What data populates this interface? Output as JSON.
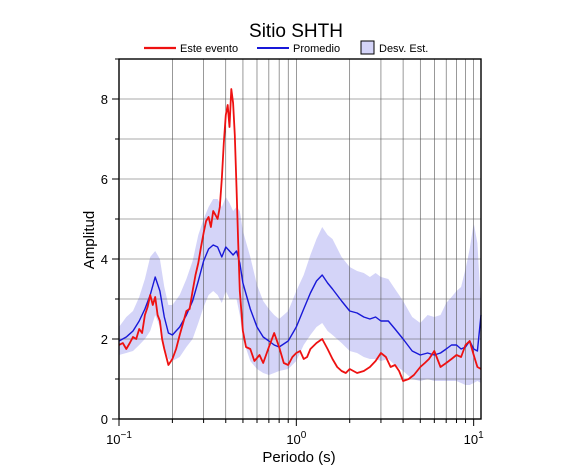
{
  "chart_data": {
    "type": "line",
    "title": "Sitio SHTH",
    "xlabel": "Periodo (s)",
    "ylabel": "Amplitud",
    "x_scale": "log",
    "xlim": [
      0.1,
      11
    ],
    "ylim": [
      0,
      9
    ],
    "grid": true,
    "legend_position": "top",
    "x_ticks": [
      {
        "value": 0.1,
        "base": "10",
        "exp": "−1"
      },
      {
        "value": 1,
        "base": "10",
        "exp": "0"
      },
      {
        "value": 10,
        "base": "10",
        "exp": "1"
      }
    ],
    "y_ticks": [
      0,
      2,
      4,
      6,
      8
    ],
    "series": [
      {
        "name": "Este evento",
        "color": "#ee1111",
        "x": [
          0.1,
          0.105,
          0.11,
          0.115,
          0.12,
          0.125,
          0.13,
          0.135,
          0.14,
          0.145,
          0.15,
          0.155,
          0.16,
          0.165,
          0.17,
          0.175,
          0.18,
          0.19,
          0.2,
          0.21,
          0.22,
          0.23,
          0.24,
          0.25,
          0.26,
          0.27,
          0.28,
          0.29,
          0.3,
          0.31,
          0.32,
          0.33,
          0.34,
          0.35,
          0.36,
          0.37,
          0.38,
          0.39,
          0.4,
          0.41,
          0.42,
          0.43,
          0.44,
          0.45,
          0.46,
          0.47,
          0.48,
          0.5,
          0.52,
          0.55,
          0.58,
          0.62,
          0.65,
          0.7,
          0.75,
          0.8,
          0.85,
          0.9,
          0.95,
          1.0,
          1.05,
          1.1,
          1.15,
          1.2,
          1.3,
          1.4,
          1.5,
          1.6,
          1.7,
          1.8,
          1.9,
          2.0,
          2.2,
          2.4,
          2.6,
          2.8,
          3.0,
          3.2,
          3.4,
          3.6,
          3.8,
          4.0,
          4.3,
          4.6,
          5.0,
          5.3,
          5.6,
          6.0,
          6.5,
          7.0,
          7.5,
          8.0,
          8.5,
          9.0,
          9.5,
          10.0,
          10.5,
          11.0
        ],
        "values": [
          1.85,
          1.9,
          1.75,
          1.9,
          2.05,
          2.0,
          2.25,
          2.15,
          2.6,
          2.8,
          3.1,
          2.85,
          3.05,
          2.6,
          2.45,
          2.0,
          1.75,
          1.35,
          1.5,
          1.75,
          2.1,
          2.4,
          2.7,
          2.75,
          3.2,
          3.6,
          3.9,
          4.3,
          4.65,
          4.95,
          5.05,
          4.8,
          5.2,
          5.1,
          5.0,
          5.3,
          6.0,
          6.9,
          7.6,
          7.85,
          7.3,
          8.25,
          7.9,
          7.1,
          5.8,
          4.4,
          3.2,
          2.2,
          1.8,
          1.75,
          1.45,
          1.6,
          1.4,
          1.8,
          2.15,
          1.8,
          1.4,
          1.35,
          1.55,
          1.65,
          1.7,
          1.5,
          1.55,
          1.75,
          1.9,
          2.0,
          1.75,
          1.5,
          1.3,
          1.2,
          1.15,
          1.25,
          1.15,
          1.2,
          1.3,
          1.45,
          1.65,
          1.55,
          1.3,
          1.35,
          1.2,
          0.95,
          1.0,
          1.1,
          1.3,
          1.4,
          1.5,
          1.7,
          1.3,
          1.4,
          1.5,
          1.6,
          1.55,
          1.85,
          1.95,
          1.6,
          1.3,
          1.25
        ]
      },
      {
        "name": "Promedio",
        "color": "#1818d8",
        "x": [
          0.1,
          0.11,
          0.12,
          0.13,
          0.14,
          0.15,
          0.16,
          0.17,
          0.18,
          0.19,
          0.2,
          0.22,
          0.24,
          0.26,
          0.28,
          0.3,
          0.32,
          0.34,
          0.36,
          0.38,
          0.4,
          0.42,
          0.44,
          0.46,
          0.48,
          0.5,
          0.55,
          0.6,
          0.65,
          0.7,
          0.75,
          0.8,
          0.9,
          1.0,
          1.1,
          1.2,
          1.3,
          1.4,
          1.5,
          1.6,
          1.8,
          2.0,
          2.2,
          2.4,
          2.6,
          2.8,
          3.0,
          3.3,
          3.6,
          4.0,
          4.5,
          5.0,
          5.5,
          6.0,
          6.5,
          7.0,
          7.5,
          8.0,
          8.5,
          9.0,
          9.5,
          10.0,
          10.5,
          11.0
        ],
        "values": [
          1.95,
          2.05,
          2.2,
          2.45,
          2.75,
          3.1,
          3.55,
          3.2,
          2.55,
          2.15,
          2.1,
          2.3,
          2.6,
          2.95,
          3.45,
          3.95,
          4.25,
          4.35,
          4.3,
          4.05,
          4.3,
          4.2,
          4.1,
          4.2,
          3.9,
          3.4,
          2.75,
          2.3,
          2.05,
          1.95,
          1.85,
          1.8,
          1.95,
          2.3,
          2.75,
          3.15,
          3.45,
          3.6,
          3.4,
          3.25,
          2.95,
          2.7,
          2.65,
          2.55,
          2.5,
          2.55,
          2.45,
          2.45,
          2.25,
          2.0,
          1.7,
          1.6,
          1.65,
          1.6,
          1.65,
          1.75,
          1.85,
          1.85,
          1.75,
          1.8,
          1.95,
          1.75,
          1.7,
          2.6
        ]
      },
      {
        "name": "Desv. Est.",
        "type": "band",
        "color": "#d4d4f8",
        "x": [
          0.1,
          0.11,
          0.12,
          0.13,
          0.14,
          0.15,
          0.16,
          0.17,
          0.18,
          0.19,
          0.2,
          0.22,
          0.24,
          0.26,
          0.28,
          0.3,
          0.32,
          0.34,
          0.36,
          0.38,
          0.4,
          0.42,
          0.44,
          0.46,
          0.48,
          0.5,
          0.55,
          0.6,
          0.65,
          0.7,
          0.75,
          0.8,
          0.9,
          1.0,
          1.1,
          1.2,
          1.3,
          1.4,
          1.5,
          1.6,
          1.8,
          2.0,
          2.2,
          2.4,
          2.6,
          2.8,
          3.0,
          3.3,
          3.6,
          4.0,
          4.5,
          5.0,
          5.5,
          6.0,
          6.5,
          7.0,
          7.5,
          8.0,
          8.5,
          9.0,
          9.5,
          10.0,
          10.5,
          11.0
        ],
        "lower": [
          1.6,
          1.65,
          1.7,
          1.85,
          2.0,
          2.2,
          2.6,
          2.3,
          1.8,
          1.5,
          1.45,
          1.55,
          1.8,
          2.0,
          2.4,
          2.8,
          3.1,
          3.2,
          3.1,
          2.9,
          3.2,
          3.0,
          3.0,
          3.0,
          2.6,
          2.0,
          1.45,
          1.25,
          1.15,
          1.1,
          1.15,
          1.2,
          1.25,
          1.45,
          1.85,
          2.1,
          2.3,
          2.4,
          2.2,
          2.1,
          1.9,
          1.7,
          1.65,
          1.55,
          1.5,
          1.5,
          1.45,
          1.5,
          1.35,
          1.2,
          1.0,
          0.95,
          1.0,
          0.95,
          0.95,
          0.95,
          0.95,
          0.95,
          0.9,
          0.85,
          0.85,
          0.9,
          0.95,
          0.9
        ],
        "upper": [
          2.3,
          2.55,
          2.7,
          3.05,
          3.5,
          4.05,
          4.2,
          4.0,
          3.3,
          2.85,
          2.85,
          3.1,
          3.5,
          3.95,
          4.6,
          5.0,
          5.3,
          5.5,
          5.5,
          5.3,
          5.55,
          5.4,
          5.2,
          5.3,
          5.2,
          4.7,
          4.05,
          3.35,
          2.95,
          2.75,
          2.6,
          2.5,
          2.7,
          3.2,
          3.6,
          4.1,
          4.5,
          4.8,
          4.6,
          4.5,
          4.05,
          3.8,
          3.7,
          3.65,
          3.55,
          3.65,
          3.55,
          3.5,
          3.25,
          2.95,
          2.55,
          2.4,
          2.6,
          2.55,
          2.6,
          2.9,
          3.05,
          3.2,
          3.3,
          3.75,
          4.25,
          4.9,
          4.4,
          2.8
        ]
      }
    ]
  }
}
